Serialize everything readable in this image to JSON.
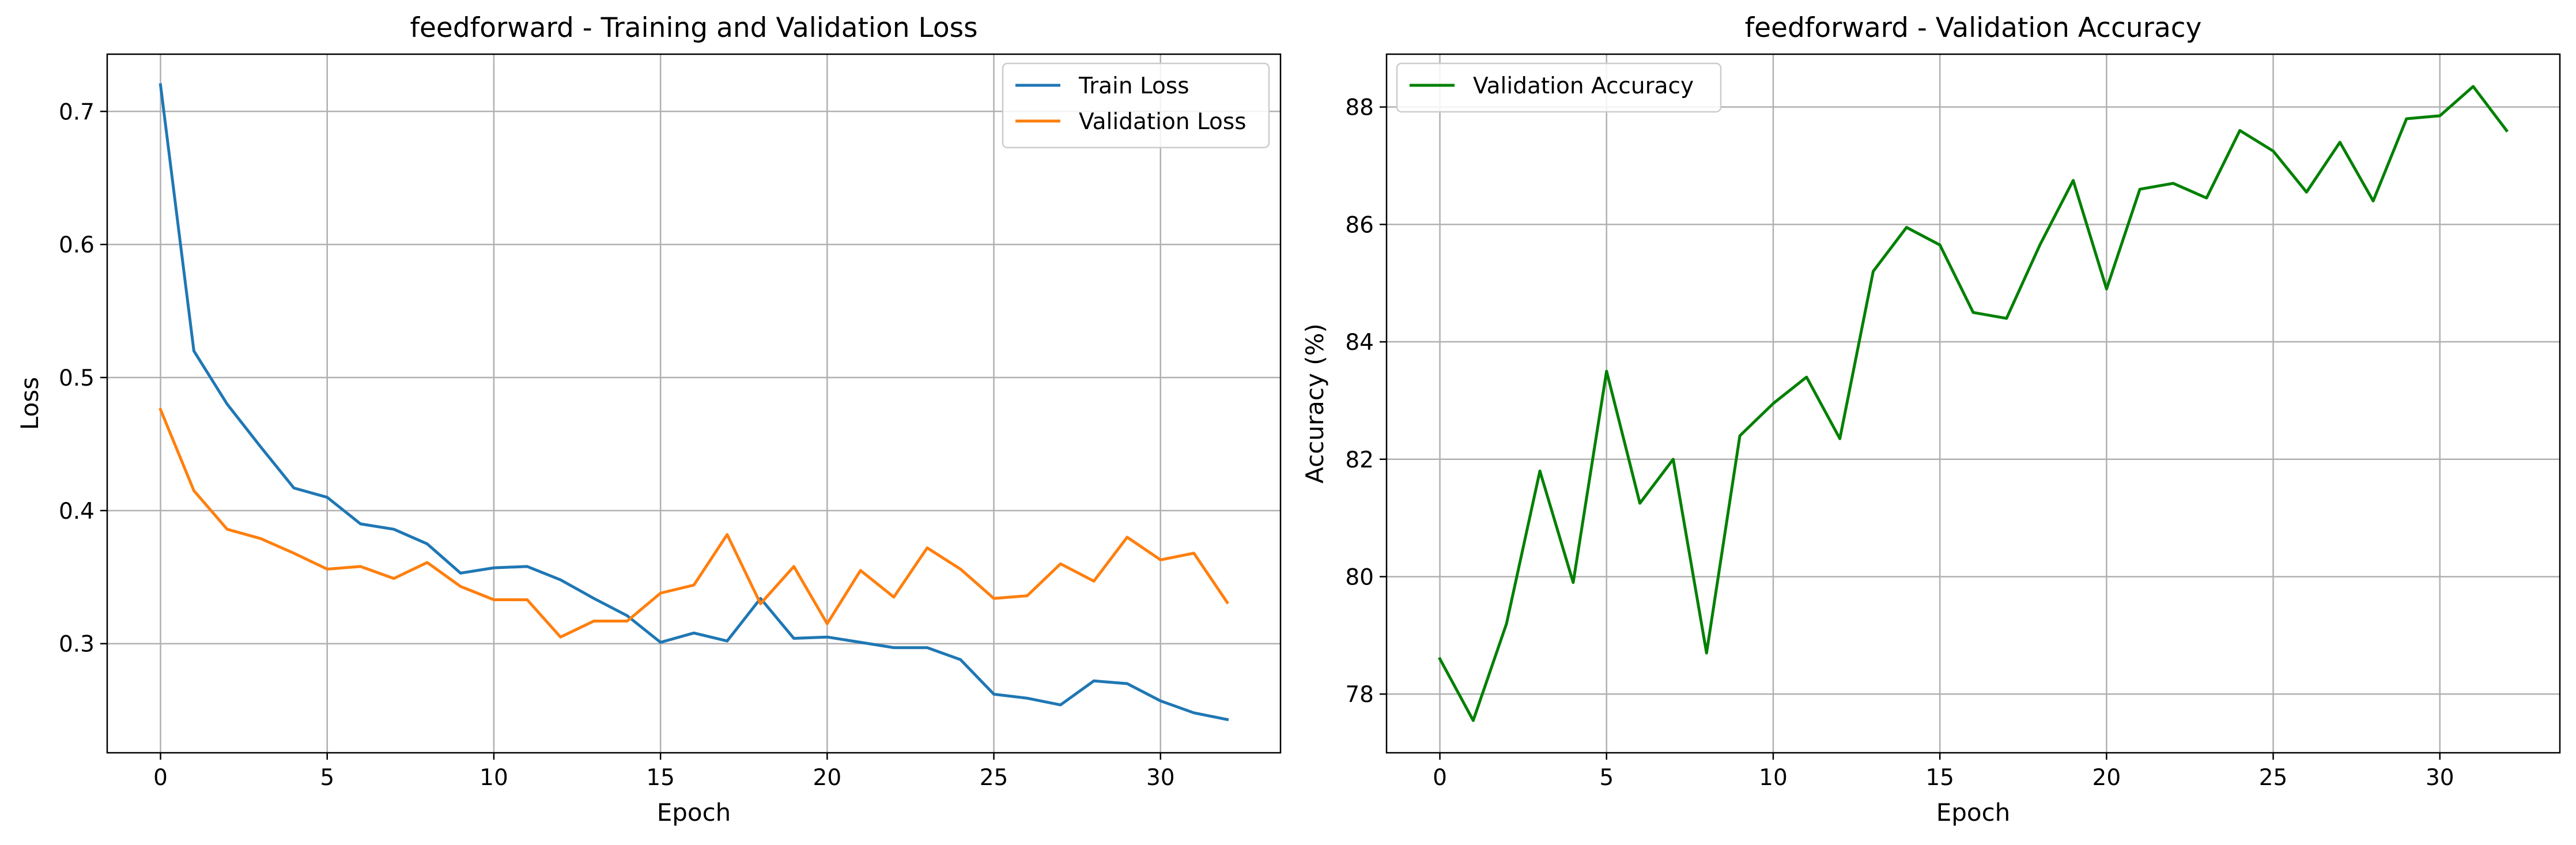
{
  "chart_data": [
    {
      "type": "line",
      "title": "feedforward - Training and Validation Loss",
      "xlabel": "Epoch",
      "ylabel": "Loss",
      "xlim": [
        -1.6,
        33.6
      ],
      "ylim": [
        0.218,
        0.743
      ],
      "xticks": [
        0,
        5,
        10,
        15,
        20,
        25,
        30
      ],
      "yticks": [
        0.3,
        0.4,
        0.5,
        0.6,
        0.7
      ],
      "ytick_labels": [
        "0.3",
        "0.4",
        "0.5",
        "0.6",
        "0.7"
      ],
      "grid": true,
      "legend": "top-right",
      "x": [
        0,
        1,
        2,
        3,
        4,
        5,
        6,
        7,
        8,
        9,
        10,
        11,
        12,
        13,
        14,
        15,
        16,
        17,
        18,
        19,
        20,
        21,
        22,
        23,
        24,
        25,
        26,
        27,
        28,
        29,
        30,
        31,
        32
      ],
      "series": [
        {
          "name": "Train Loss",
          "color": "#1f77b4",
          "values": [
            0.72,
            0.52,
            0.48,
            0.448,
            0.417,
            0.41,
            0.39,
            0.386,
            0.375,
            0.353,
            0.357,
            0.358,
            0.348,
            0.334,
            0.321,
            0.301,
            0.308,
            0.302,
            0.334,
            0.304,
            0.305,
            0.301,
            0.297,
            0.297,
            0.288,
            0.262,
            0.259,
            0.254,
            0.272,
            0.27,
            0.257,
            0.248,
            0.243
          ]
        },
        {
          "name": "Validation Loss",
          "color": "#ff7f0e",
          "values": [
            0.476,
            0.415,
            0.386,
            0.379,
            0.368,
            0.356,
            0.358,
            0.349,
            0.361,
            0.343,
            0.333,
            0.333,
            0.305,
            0.317,
            0.317,
            0.338,
            0.344,
            0.382,
            0.33,
            0.358,
            0.315,
            0.355,
            0.335,
            0.372,
            0.356,
            0.334,
            0.336,
            0.36,
            0.347,
            0.38,
            0.363,
            0.368,
            0.331
          ]
        }
      ]
    },
    {
      "type": "line",
      "title": "feedforward - Validation Accuracy",
      "xlabel": "Epoch",
      "ylabel": "Accuracy (%)",
      "xlim": [
        -1.6,
        33.6
      ],
      "ylim": [
        77.0,
        88.9
      ],
      "xticks": [
        0,
        5,
        10,
        15,
        20,
        25,
        30
      ],
      "yticks": [
        78,
        80,
        82,
        84,
        86,
        88
      ],
      "ytick_labels": [
        "78",
        "80",
        "82",
        "84",
        "86",
        "88"
      ],
      "grid": true,
      "legend": "top-left",
      "x": [
        0,
        1,
        2,
        3,
        4,
        5,
        6,
        7,
        8,
        9,
        10,
        11,
        12,
        13,
        14,
        15,
        16,
        17,
        18,
        19,
        20,
        21,
        22,
        23,
        24,
        25,
        26,
        27,
        28,
        29,
        30,
        31,
        32
      ],
      "series": [
        {
          "name": "Validation Accuracy",
          "color": "#008000",
          "values": [
            78.6,
            77.55,
            79.2,
            81.8,
            79.9,
            83.5,
            81.25,
            82.0,
            78.7,
            82.4,
            82.95,
            83.4,
            82.35,
            85.2,
            85.95,
            85.65,
            84.5,
            84.4,
            85.65,
            86.75,
            84.9,
            86.6,
            86.7,
            86.45,
            87.6,
            87.25,
            86.55,
            87.4,
            86.4,
            87.8,
            87.85,
            88.35,
            87.6
          ]
        }
      ]
    }
  ]
}
